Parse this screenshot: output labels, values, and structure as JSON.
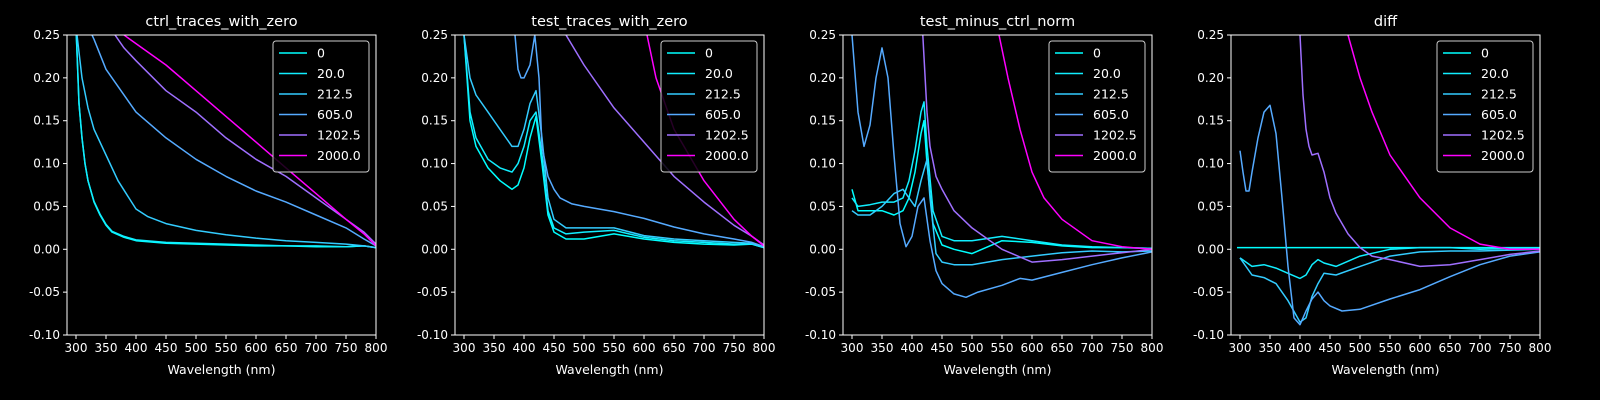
{
  "figure": {
    "background": "#000000",
    "foreground": "#ffffff"
  },
  "chart_data": [
    {
      "type": "line",
      "title": "ctrl_traces_with_zero",
      "xlabel": "Wavelength (nm)",
      "ylabel": "",
      "xlim": [
        285,
        800
      ],
      "ylim": [
        -0.1,
        0.25
      ],
      "xticks": [
        300,
        350,
        400,
        450,
        500,
        550,
        600,
        650,
        700,
        750,
        800
      ],
      "yticks": [
        -0.1,
        -0.05,
        0.0,
        0.05,
        0.1,
        0.15,
        0.2,
        0.25
      ],
      "grid": false,
      "legend_position": "top-right",
      "series": [
        {
          "name": "0",
          "color": "#00ffff",
          "x": [
            300,
            305,
            310,
            315,
            320,
            330,
            340,
            350,
            360,
            380,
            400,
            450,
            500,
            550,
            600,
            650,
            700,
            750,
            780,
            800
          ],
          "y": [
            0.26,
            0.17,
            0.13,
            0.1,
            0.08,
            0.055,
            0.04,
            0.028,
            0.02,
            0.014,
            0.01,
            0.007,
            0.006,
            0.005,
            0.004,
            0.004,
            0.003,
            0.003,
            0.004,
            0.002
          ]
        },
        {
          "name": "20.0",
          "color": "#11eeff",
          "x": [
            300,
            305,
            310,
            315,
            320,
            330,
            340,
            350,
            360,
            380,
            400,
            450,
            500,
            550,
            600,
            650,
            700,
            750,
            780,
            800
          ],
          "y": [
            0.26,
            0.17,
            0.13,
            0.1,
            0.08,
            0.056,
            0.041,
            0.029,
            0.021,
            0.015,
            0.011,
            0.008,
            0.007,
            0.006,
            0.005,
            0.004,
            0.004,
            0.003,
            0.004,
            0.002
          ]
        },
        {
          "name": "212.5",
          "color": "#33ccff",
          "x": [
            300,
            310,
            320,
            330,
            350,
            370,
            400,
            420,
            450,
            500,
            550,
            600,
            650,
            700,
            750,
            780,
            800
          ],
          "y": [
            0.26,
            0.2,
            0.165,
            0.14,
            0.11,
            0.08,
            0.047,
            0.038,
            0.03,
            0.022,
            0.017,
            0.013,
            0.01,
            0.008,
            0.006,
            0.004,
            0.002
          ]
        },
        {
          "name": "605.0",
          "color": "#55aaff",
          "x": [
            320,
            330,
            350,
            400,
            450,
            500,
            550,
            600,
            650,
            700,
            750,
            780,
            800
          ],
          "y": [
            0.26,
            0.245,
            0.21,
            0.16,
            0.13,
            0.105,
            0.085,
            0.068,
            0.055,
            0.04,
            0.025,
            0.012,
            0.004
          ]
        },
        {
          "name": "1202.5",
          "color": "#9f6fff",
          "x": [
            365,
            380,
            400,
            450,
            500,
            550,
            600,
            650,
            700,
            750,
            780,
            800
          ],
          "y": [
            0.25,
            0.235,
            0.22,
            0.185,
            0.16,
            0.13,
            0.105,
            0.085,
            0.06,
            0.035,
            0.02,
            0.006
          ]
        },
        {
          "name": "2000.0",
          "color": "#ff00ff",
          "x": [
            380,
            400,
            450,
            500,
            550,
            600,
            650,
            700,
            750,
            780,
            800
          ],
          "y": [
            0.25,
            0.24,
            0.215,
            0.185,
            0.155,
            0.125,
            0.095,
            0.065,
            0.035,
            0.018,
            0.004
          ]
        }
      ]
    },
    {
      "type": "line",
      "title": "test_traces_with_zero",
      "xlabel": "Wavelength (nm)",
      "ylabel": "",
      "xlim": [
        285,
        800
      ],
      "ylim": [
        -0.1,
        0.25
      ],
      "xticks": [
        300,
        350,
        400,
        450,
        500,
        550,
        600,
        650,
        700,
        750,
        800
      ],
      "yticks": [
        -0.1,
        -0.05,
        0.0,
        0.05,
        0.1,
        0.15,
        0.2,
        0.25
      ],
      "grid": false,
      "legend_position": "top-right",
      "series": [
        {
          "name": "0",
          "color": "#00ffff",
          "x": [
            300,
            310,
            320,
            340,
            360,
            380,
            390,
            400,
            410,
            420,
            430,
            440,
            450,
            470,
            500,
            550,
            600,
            650,
            700,
            750,
            780,
            800
          ],
          "y": [
            0.25,
            0.15,
            0.12,
            0.095,
            0.08,
            0.07,
            0.075,
            0.095,
            0.13,
            0.155,
            0.1,
            0.04,
            0.02,
            0.012,
            0.012,
            0.018,
            0.012,
            0.008,
            0.006,
            0.005,
            0.006,
            0.002
          ]
        },
        {
          "name": "20.0",
          "color": "#11eeff",
          "x": [
            300,
            310,
            320,
            340,
            360,
            380,
            390,
            400,
            410,
            420,
            430,
            440,
            450,
            470,
            500,
            550,
            600,
            650,
            700,
            750,
            780,
            800
          ],
          "y": [
            0.25,
            0.16,
            0.13,
            0.105,
            0.095,
            0.09,
            0.1,
            0.12,
            0.15,
            0.16,
            0.11,
            0.045,
            0.025,
            0.018,
            0.02,
            0.022,
            0.014,
            0.01,
            0.008,
            0.006,
            0.006,
            0.002
          ]
        },
        {
          "name": "212.5",
          "color": "#33ccff",
          "x": [
            300,
            310,
            320,
            340,
            360,
            380,
            390,
            400,
            410,
            420,
            430,
            440,
            450,
            470,
            500,
            550,
            600,
            650,
            700,
            750,
            780,
            800
          ],
          "y": [
            0.25,
            0.2,
            0.18,
            0.16,
            0.14,
            0.12,
            0.12,
            0.14,
            0.17,
            0.185,
            0.13,
            0.06,
            0.035,
            0.025,
            0.025,
            0.025,
            0.016,
            0.012,
            0.01,
            0.008,
            0.007,
            0.003
          ]
        },
        {
          "name": "605.0",
          "color": "#55aaff",
          "x": [
            385,
            390,
            395,
            400,
            410,
            418,
            425,
            430,
            440,
            450,
            460,
            480,
            500,
            550,
            600,
            650,
            700,
            750,
            780,
            800
          ],
          "y": [
            0.25,
            0.21,
            0.2,
            0.2,
            0.215,
            0.25,
            0.2,
            0.12,
            0.085,
            0.07,
            0.06,
            0.053,
            0.05,
            0.044,
            0.036,
            0.026,
            0.018,
            0.012,
            0.008,
            0.003
          ]
        },
        {
          "name": "1202.5",
          "color": "#9f6fff",
          "x": [
            470,
            500,
            550,
            600,
            650,
            700,
            750,
            780,
            800
          ],
          "y": [
            0.25,
            0.215,
            0.165,
            0.125,
            0.085,
            0.055,
            0.028,
            0.015,
            0.005
          ]
        },
        {
          "name": "2000.0",
          "color": "#ff00ff",
          "x": [
            605,
            620,
            650,
            700,
            750,
            780,
            800
          ],
          "y": [
            0.25,
            0.2,
            0.14,
            0.08,
            0.035,
            0.015,
            0.004
          ]
        }
      ]
    },
    {
      "type": "line",
      "title": "test_minus_ctrl_norm",
      "xlabel": "Wavelength (nm)",
      "ylabel": "",
      "xlim": [
        285,
        800
      ],
      "ylim": [
        -0.1,
        0.25
      ],
      "xticks": [
        300,
        350,
        400,
        450,
        500,
        550,
        600,
        650,
        700,
        750,
        800
      ],
      "yticks": [
        -0.1,
        -0.05,
        0.0,
        0.05,
        0.1,
        0.15,
        0.2,
        0.25
      ],
      "grid": false,
      "legend_position": "top-right",
      "series": [
        {
          "name": "0",
          "color": "#00ffff",
          "x": [
            300,
            310,
            330,
            350,
            370,
            385,
            395,
            405,
            415,
            420,
            425,
            435,
            450,
            470,
            500,
            550,
            600,
            650,
            700,
            750,
            800
          ],
          "y": [
            0.07,
            0.045,
            0.045,
            0.045,
            0.04,
            0.045,
            0.06,
            0.09,
            0.135,
            0.15,
            0.1,
            0.03,
            0.005,
            0.0,
            -0.005,
            0.01,
            0.008,
            0.004,
            0.002,
            0.002,
            0.001
          ]
        },
        {
          "name": "20.0",
          "color": "#11eeff",
          "x": [
            300,
            310,
            330,
            350,
            370,
            385,
            395,
            405,
            415,
            420,
            425,
            435,
            450,
            470,
            500,
            550,
            600,
            650,
            700,
            750,
            800
          ],
          "y": [
            0.06,
            0.05,
            0.052,
            0.055,
            0.055,
            0.06,
            0.08,
            0.115,
            0.16,
            0.172,
            0.12,
            0.045,
            0.015,
            0.01,
            0.01,
            0.015,
            0.01,
            0.005,
            0.003,
            0.002,
            0.001
          ]
        },
        {
          "name": "212.5",
          "color": "#33ccff",
          "x": [
            300,
            310,
            330,
            350,
            370,
            385,
            395,
            405,
            415,
            425,
            430,
            440,
            450,
            470,
            500,
            550,
            600,
            650,
            700,
            750,
            800
          ],
          "y": [
            0.045,
            0.04,
            0.04,
            0.05,
            0.065,
            0.07,
            0.06,
            0.05,
            0.08,
            0.105,
            0.06,
            -0.005,
            -0.015,
            -0.018,
            -0.018,
            -0.012,
            -0.008,
            -0.004,
            -0.002,
            -0.003,
            -0.002
          ]
        },
        {
          "name": "605.0",
          "color": "#55aaff",
          "x": [
            300,
            310,
            320,
            330,
            340,
            350,
            360,
            370,
            380,
            390,
            400,
            410,
            420,
            430,
            440,
            450,
            470,
            490,
            510,
            550,
            580,
            600,
            650,
            700,
            750,
            800
          ],
          "y": [
            0.25,
            0.16,
            0.12,
            0.145,
            0.2,
            0.235,
            0.2,
            0.11,
            0.03,
            0.003,
            0.015,
            0.05,
            0.06,
            0.01,
            -0.025,
            -0.04,
            -0.052,
            -0.056,
            -0.05,
            -0.042,
            -0.034,
            -0.036,
            -0.027,
            -0.018,
            -0.01,
            -0.003
          ]
        },
        {
          "name": "1202.5",
          "color": "#9f6fff",
          "x": [
            418,
            425,
            430,
            440,
            450,
            470,
            500,
            550,
            600,
            650,
            700,
            750,
            800
          ],
          "y": [
            0.25,
            0.16,
            0.12,
            0.085,
            0.07,
            0.045,
            0.025,
            0.0,
            -0.015,
            -0.012,
            -0.008,
            -0.004,
            0.0
          ]
        },
        {
          "name": "2000.0",
          "color": "#ff00ff",
          "x": [
            545,
            560,
            580,
            600,
            620,
            650,
            700,
            750,
            800
          ],
          "y": [
            0.25,
            0.2,
            0.14,
            0.09,
            0.06,
            0.035,
            0.01,
            0.003,
            0.0
          ]
        }
      ]
    },
    {
      "type": "line",
      "title": "diff",
      "xlabel": "Wavelength (nm)",
      "ylabel": "",
      "xlim": [
        285,
        800
      ],
      "ylim": [
        -0.1,
        0.25
      ],
      "xticks": [
        300,
        350,
        400,
        450,
        500,
        550,
        600,
        650,
        700,
        750,
        800
      ],
      "yticks": [
        -0.1,
        -0.05,
        0.0,
        0.05,
        0.1,
        0.15,
        0.2,
        0.25
      ],
      "grid": false,
      "legend_position": "top-right",
      "series": [
        {
          "name": "0",
          "color": "#00ffff",
          "x": [
            295,
            800
          ],
          "y": [
            0.002,
            0.002
          ]
        },
        {
          "name": "20.0",
          "color": "#11eeff",
          "x": [
            300,
            320,
            340,
            360,
            380,
            400,
            410,
            420,
            430,
            440,
            460,
            500,
            550,
            600,
            650,
            700,
            750,
            800
          ],
          "y": [
            -0.01,
            -0.02,
            -0.018,
            -0.022,
            -0.028,
            -0.034,
            -0.03,
            -0.018,
            -0.012,
            -0.016,
            -0.02,
            -0.008,
            0.0,
            0.002,
            0.002,
            0.0,
            0.001,
            0.001
          ]
        },
        {
          "name": "212.5",
          "color": "#33ccff",
          "x": [
            300,
            320,
            340,
            360,
            380,
            400,
            410,
            420,
            430,
            440,
            460,
            500,
            550,
            600,
            650,
            700,
            750,
            800
          ],
          "y": [
            -0.01,
            -0.03,
            -0.033,
            -0.04,
            -0.06,
            -0.085,
            -0.08,
            -0.055,
            -0.04,
            -0.028,
            -0.03,
            -0.02,
            -0.008,
            -0.003,
            -0.002,
            -0.002,
            -0.001,
            0.0
          ]
        },
        {
          "name": "605.0",
          "color": "#55aaff",
          "x": [
            300,
            305,
            310,
            315,
            320,
            330,
            340,
            350,
            360,
            370,
            380,
            390,
            400,
            410,
            420,
            430,
            440,
            450,
            470,
            500,
            550,
            600,
            650,
            700,
            750,
            800
          ],
          "y": [
            0.115,
            0.09,
            0.068,
            0.068,
            0.09,
            0.13,
            0.16,
            0.168,
            0.135,
            0.06,
            -0.02,
            -0.08,
            -0.088,
            -0.072,
            -0.058,
            -0.05,
            -0.06,
            -0.066,
            -0.072,
            -0.07,
            -0.058,
            -0.047,
            -0.032,
            -0.018,
            -0.008,
            -0.003
          ]
        },
        {
          "name": "1202.5",
          "color": "#9f6fff",
          "x": [
            400,
            405,
            410,
            415,
            420,
            430,
            440,
            450,
            460,
            480,
            500,
            520,
            550,
            600,
            650,
            700,
            750,
            800
          ],
          "y": [
            0.25,
            0.18,
            0.14,
            0.12,
            0.11,
            0.112,
            0.09,
            0.06,
            0.042,
            0.018,
            0.002,
            -0.008,
            -0.012,
            -0.02,
            -0.018,
            -0.012,
            -0.006,
            -0.002
          ]
        },
        {
          "name": "2000.0",
          "color": "#ff00ff",
          "x": [
            480,
            500,
            520,
            550,
            600,
            650,
            700,
            750,
            800
          ],
          "y": [
            0.25,
            0.2,
            0.16,
            0.11,
            0.06,
            0.025,
            0.006,
            0.0,
            0.0
          ]
        }
      ]
    }
  ]
}
